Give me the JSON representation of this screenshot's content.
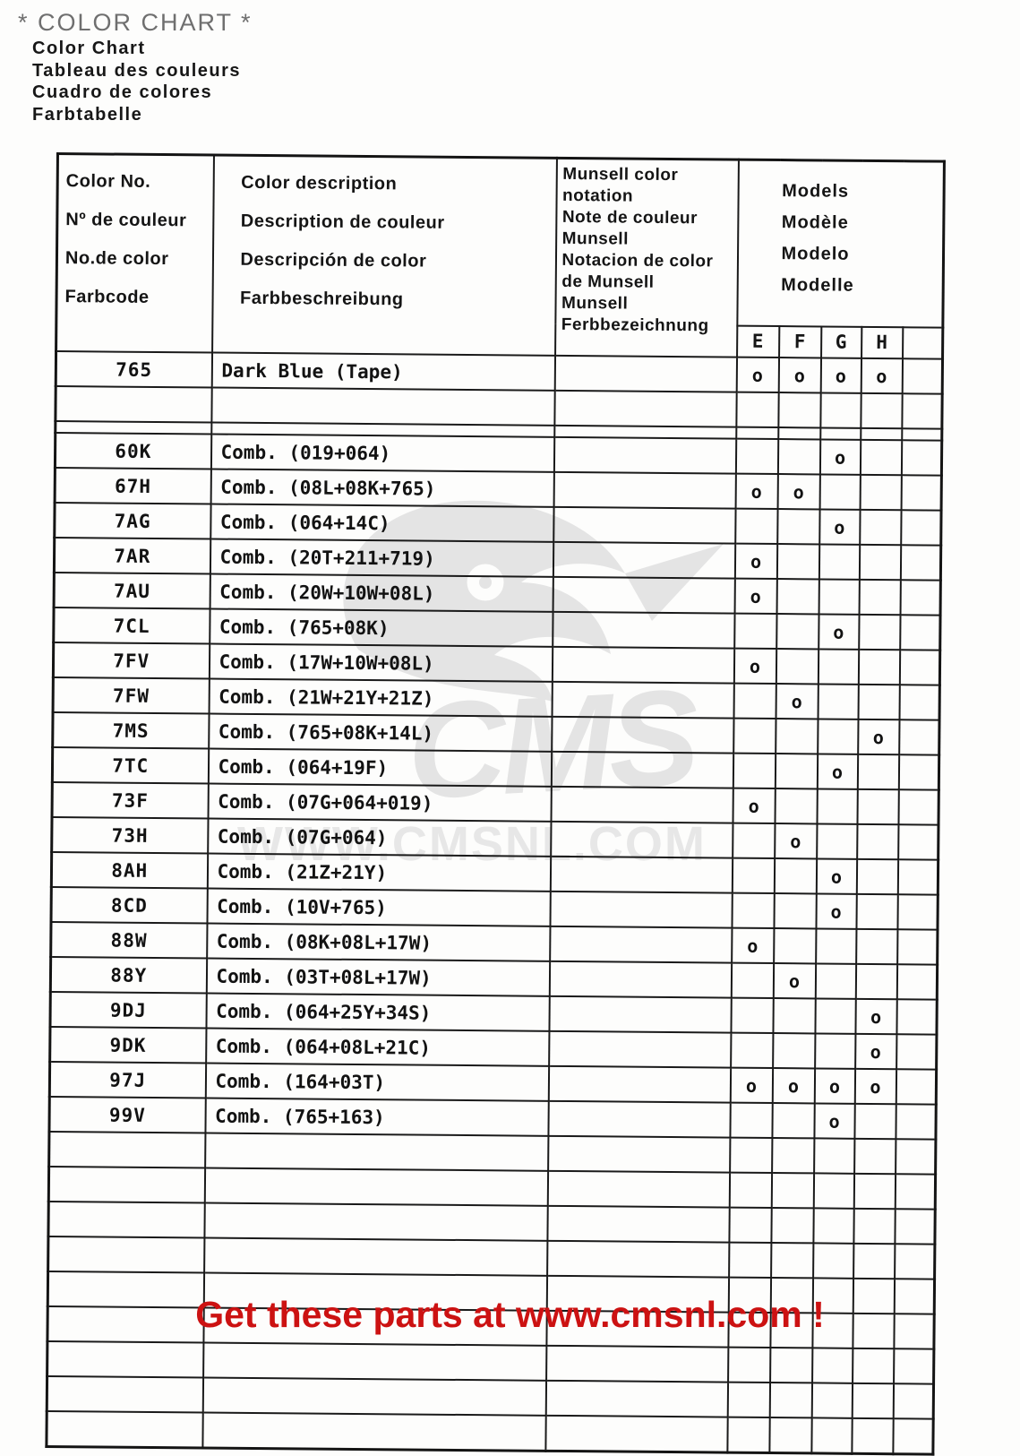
{
  "page": {
    "main_title": "* COLOR CHART *",
    "subtitles": [
      "Color Chart",
      "Tableau des couleurs",
      "Cuadro de colores",
      "Farbtabelle"
    ],
    "footer_ad": "Get these parts at www.cmsnl.com !",
    "colors": {
      "footer_red": "#cc1212",
      "title_gray": "#6f6f6f",
      "watermark_gray": "#e4e4e4"
    },
    "watermark": {
      "brand": "CMS",
      "url": "WWW.CMSNL.COM",
      "mascot_icon": "cms-bird-mascot"
    }
  },
  "table": {
    "headers": {
      "color_no": "Color No.\nNº de couleur\nNo.de color\nFarbcode",
      "description": "Color description\nDescription de couleur\nDescripción de color\nFarbbeschreibung",
      "munsell": "Munsell color\nnotation\nNote de couleur\nMunsell\nNotacion de color\nde Munsell\nMunsell\nFerbbezeichnung",
      "models": "Models\nModèle\nModelo\nModelle",
      "model_columns": [
        "E",
        "F",
        "G",
        "H",
        ""
      ]
    },
    "mark_symbol": "o",
    "rows": [
      {
        "kind": "data",
        "no": "765",
        "desc": "Dark Blue (Tape)",
        "munsell": "",
        "marks": [
          "E",
          "F",
          "G",
          "H"
        ]
      },
      {
        "kind": "spacer",
        "no": "",
        "desc": "",
        "munsell": "",
        "marks": []
      },
      {
        "kind": "thin",
        "no": "",
        "desc": "",
        "munsell": "",
        "marks": []
      },
      {
        "kind": "data",
        "no": "60K",
        "desc": "Comb. (019+064)",
        "munsell": "",
        "marks": [
          "G"
        ]
      },
      {
        "kind": "data",
        "no": "67H",
        "desc": "Comb. (08L+08K+765)",
        "munsell": "",
        "marks": [
          "E",
          "F"
        ]
      },
      {
        "kind": "data",
        "no": "7AG",
        "desc": "Comb. (064+14C)",
        "munsell": "",
        "marks": [
          "G"
        ]
      },
      {
        "kind": "data",
        "no": "7AR",
        "desc": "Comb. (20T+211+719)",
        "munsell": "",
        "marks": [
          "E"
        ]
      },
      {
        "kind": "data",
        "no": "7AU",
        "desc": "Comb. (20W+10W+08L)",
        "munsell": "",
        "marks": [
          "E"
        ]
      },
      {
        "kind": "data",
        "no": "7CL",
        "desc": "Comb. (765+08K)",
        "munsell": "",
        "marks": [
          "G"
        ]
      },
      {
        "kind": "data",
        "no": "7FV",
        "desc": "Comb. (17W+10W+08L)",
        "munsell": "",
        "marks": [
          "E"
        ]
      },
      {
        "kind": "data",
        "no": "7FW",
        "desc": "Comb. (21W+21Y+21Z)",
        "munsell": "",
        "marks": [
          "F"
        ]
      },
      {
        "kind": "data",
        "no": "7MS",
        "desc": "Comb. (765+08K+14L)",
        "munsell": "",
        "marks": [
          "H"
        ]
      },
      {
        "kind": "data",
        "no": "7TC",
        "desc": "Comb. (064+19F)",
        "munsell": "",
        "marks": [
          "G"
        ]
      },
      {
        "kind": "data",
        "no": "73F",
        "desc": "Comb. (07G+064+019)",
        "munsell": "",
        "marks": [
          "E"
        ]
      },
      {
        "kind": "data",
        "no": "73H",
        "desc": "Comb. (07G+064)",
        "munsell": "",
        "marks": [
          "F"
        ]
      },
      {
        "kind": "data",
        "no": "8AH",
        "desc": "Comb. (21Z+21Y)",
        "munsell": "",
        "marks": [
          "G"
        ]
      },
      {
        "kind": "data",
        "no": "8CD",
        "desc": "Comb. (10V+765)",
        "munsell": "",
        "marks": [
          "G"
        ]
      },
      {
        "kind": "data",
        "no": "88W",
        "desc": "Comb. (08K+08L+17W)",
        "munsell": "",
        "marks": [
          "E"
        ]
      },
      {
        "kind": "data",
        "no": "88Y",
        "desc": "Comb. (03T+08L+17W)",
        "munsell": "",
        "marks": [
          "F"
        ]
      },
      {
        "kind": "data",
        "no": "9DJ",
        "desc": "Comb. (064+25Y+34S)",
        "munsell": "",
        "marks": [
          "H"
        ]
      },
      {
        "kind": "data",
        "no": "9DK",
        "desc": "Comb. (064+08L+21C)",
        "munsell": "",
        "marks": [
          "H"
        ]
      },
      {
        "kind": "data",
        "no": "97J",
        "desc": "Comb. (164+03T)",
        "munsell": "",
        "marks": [
          "E",
          "F",
          "G",
          "H"
        ]
      },
      {
        "kind": "data",
        "no": "99V",
        "desc": "Comb. (765+163)",
        "munsell": "",
        "marks": [
          "G"
        ]
      },
      {
        "kind": "spacer",
        "no": "",
        "desc": "",
        "munsell": "",
        "marks": []
      },
      {
        "kind": "spacer",
        "no": "",
        "desc": "",
        "munsell": "",
        "marks": []
      },
      {
        "kind": "spacer",
        "no": "",
        "desc": "",
        "munsell": "",
        "marks": []
      },
      {
        "kind": "spacer",
        "no": "",
        "desc": "",
        "munsell": "",
        "marks": []
      },
      {
        "kind": "spacer",
        "no": "",
        "desc": "",
        "munsell": "",
        "marks": []
      },
      {
        "kind": "spacer",
        "no": "",
        "desc": "",
        "munsell": "",
        "marks": []
      },
      {
        "kind": "spacer",
        "no": "",
        "desc": "",
        "munsell": "",
        "marks": []
      },
      {
        "kind": "spacer",
        "no": "",
        "desc": "",
        "munsell": "",
        "marks": []
      },
      {
        "kind": "spacer",
        "no": "",
        "desc": "",
        "munsell": "",
        "marks": []
      }
    ]
  }
}
